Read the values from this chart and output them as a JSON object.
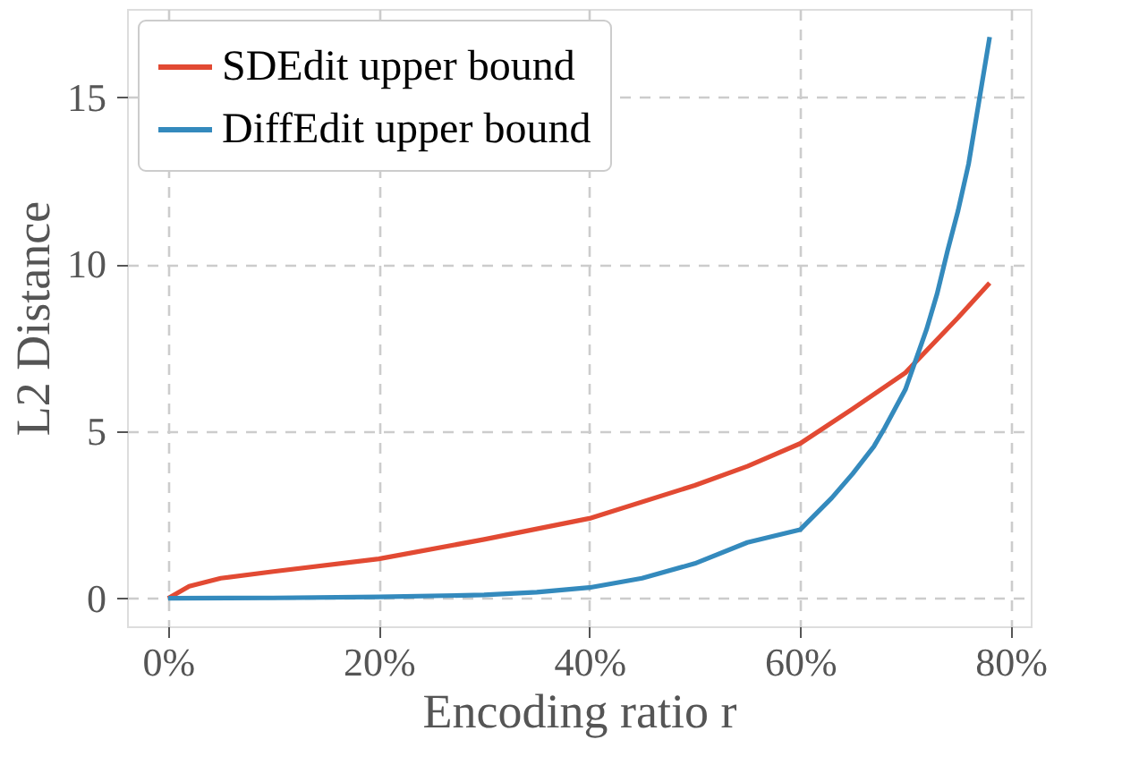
{
  "chart_data": {
    "type": "line",
    "xlabel": "Encoding ratio r",
    "ylabel": "L2 Distance",
    "xlim": [
      -3.9,
      81.9
    ],
    "ylim": [
      -0.84,
      17.64
    ],
    "xticks": [
      {
        "value": 0,
        "label": "0%"
      },
      {
        "value": 20,
        "label": "20%"
      },
      {
        "value": 40,
        "label": "40%"
      },
      {
        "value": 60,
        "label": "60%"
      },
      {
        "value": 80,
        "label": "80%"
      }
    ],
    "yticks": [
      0,
      5,
      10,
      15
    ],
    "grid": true,
    "legend": "top left",
    "line_style": "solid",
    "marker": "none",
    "series": [
      {
        "name": "SDEdit upper bound",
        "color": "#e24a33",
        "x": [
          0,
          2,
          5,
          10,
          20,
          30,
          40,
          50,
          55,
          60,
          65,
          70,
          75,
          78
        ],
        "values": [
          0,
          0.36,
          0.6,
          0.8,
          1.18,
          1.76,
          2.39,
          3.38,
          3.95,
          4.63,
          5.67,
          6.75,
          8.4,
          9.44
        ]
      },
      {
        "name": "DiffEdit upper bound",
        "color": "#348abd",
        "x": [
          0,
          10,
          20,
          30,
          35,
          40,
          45,
          50,
          55,
          60,
          63,
          65,
          67,
          68,
          70,
          72,
          73,
          74,
          75,
          76,
          77,
          78
        ],
        "values": [
          0,
          0.01,
          0.04,
          0.1,
          0.18,
          0.32,
          0.6,
          1.04,
          1.67,
          2.05,
          3.0,
          3.73,
          4.54,
          5.08,
          6.25,
          8.04,
          9.1,
          10.4,
          11.6,
          13.0,
          14.9,
          16.8
        ]
      }
    ]
  }
}
